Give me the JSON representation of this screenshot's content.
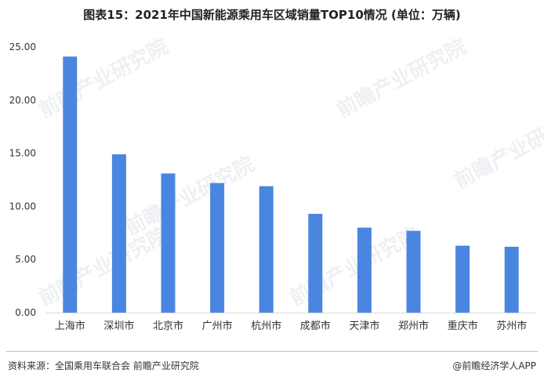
{
  "title": "图表15：2021年中国新能源乘用车区域销量TOP10情况 (单位：万辆)",
  "watermark_text": "前瞻产业研究院",
  "source": "资料来源：全国乘用车联合会 前瞻产业研究院",
  "credit": "@前瞻经济学人APP",
  "colors": {
    "bar": "#4a86e0",
    "axis": "#d9d9d9",
    "text": "#333333"
  },
  "chart_data": {
    "type": "bar",
    "title": "图表15：2021年中国新能源乘用车区域销量TOP10情况 (单位：万辆)",
    "categories": [
      "上海市",
      "深圳市",
      "北京市",
      "广州市",
      "杭州市",
      "成都市",
      "天津市",
      "郑州市",
      "重庆市",
      "苏州市"
    ],
    "values": [
      24.1,
      14.9,
      13.1,
      12.2,
      11.9,
      9.3,
      8.0,
      7.7,
      6.3,
      6.2
    ],
    "ylim": [
      0,
      25
    ],
    "yticks": [
      "0.00",
      "5.00",
      "10.00",
      "15.00",
      "20.00",
      "25.00"
    ],
    "xlabel": "",
    "ylabel": "",
    "grid": false
  }
}
